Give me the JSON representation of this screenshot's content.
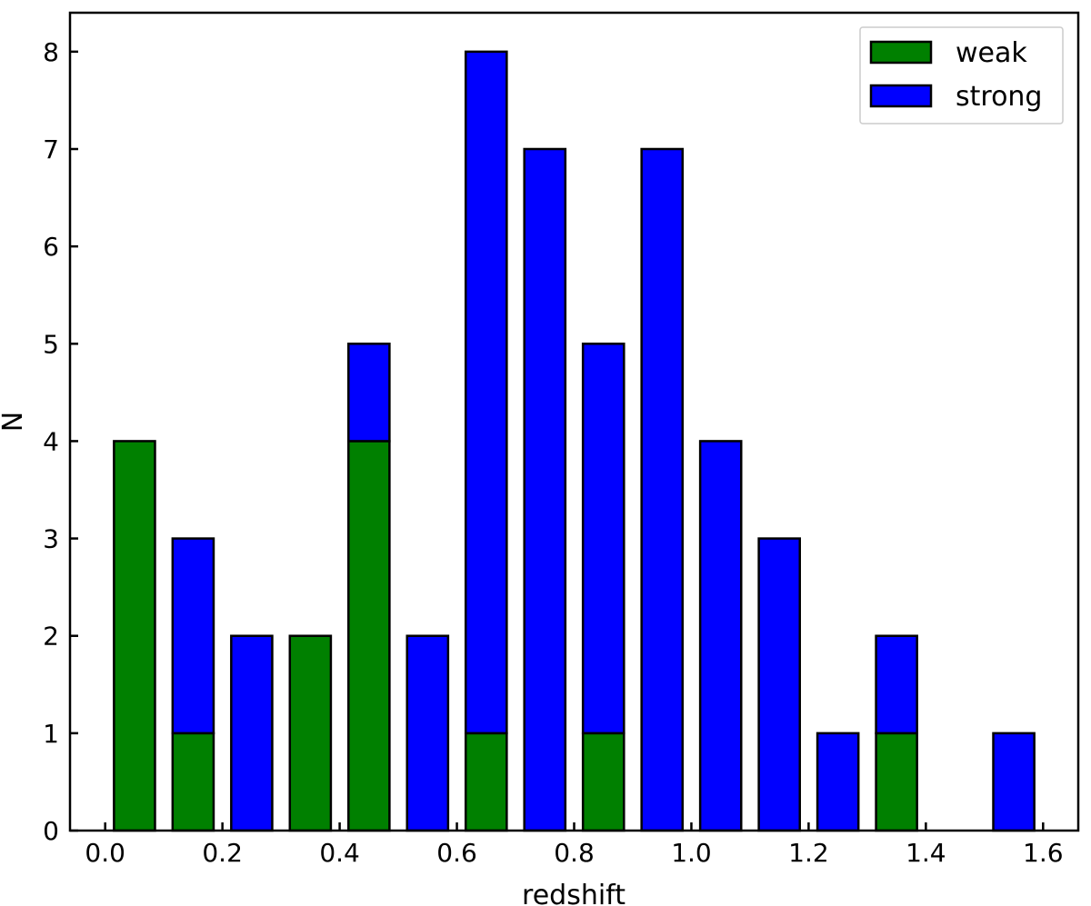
{
  "chart_data": {
    "type": "bar",
    "stacked": true,
    "title": "",
    "xlabel": "redshift",
    "ylabel": "N",
    "xlim": [
      -0.06,
      1.66
    ],
    "ylim": [
      0,
      8.4
    ],
    "bin_width": 0.1,
    "bar_width": 0.07,
    "x": [
      0.05,
      0.15,
      0.25,
      0.35,
      0.45,
      0.55,
      0.65,
      0.75,
      0.85,
      0.95,
      1.05,
      1.15,
      1.25,
      1.35,
      1.45,
      1.55
    ],
    "x_ticks": [
      "0.0",
      "0.2",
      "0.4",
      "0.6",
      "0.8",
      "1.0",
      "1.2",
      "1.4",
      "1.6"
    ],
    "y_ticks": [
      "0",
      "1",
      "2",
      "3",
      "4",
      "5",
      "6",
      "7",
      "8"
    ],
    "series": [
      {
        "name": "weak",
        "color": "#008000",
        "values": [
          4,
          1,
          0,
          2,
          4,
          0,
          1,
          0,
          1,
          0,
          0,
          0,
          0,
          1,
          0,
          0
        ]
      },
      {
        "name": "strong",
        "color": "#0000ff",
        "values": [
          0,
          2,
          2,
          0,
          1,
          2,
          7,
          7,
          4,
          7,
          4,
          3,
          1,
          1,
          0,
          1
        ]
      }
    ],
    "legend_position": "top-right",
    "grid": false,
    "ticks_direction": "in"
  }
}
